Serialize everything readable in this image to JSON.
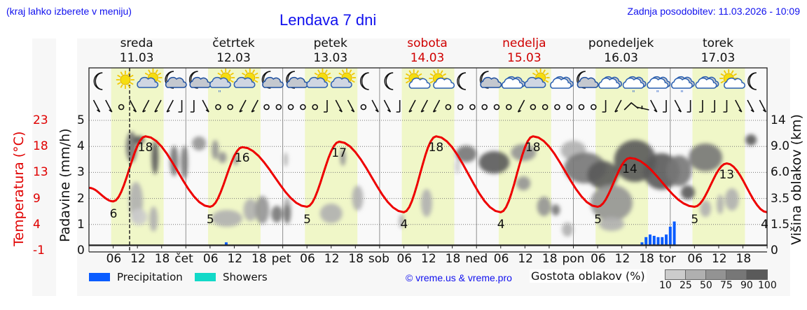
{
  "header": {
    "location_hint": "(kraj lahko izberete v meniju)",
    "title": "Lendava 7 dni",
    "last_update": "Zadnja posodobitev: 11.03.2026 - 10:09"
  },
  "days": [
    {
      "name": "sreda",
      "date": "11.03",
      "weekend": false
    },
    {
      "name": "četrtek",
      "date": "12.03",
      "weekend": false
    },
    {
      "name": "petek",
      "date": "13.03",
      "weekend": false
    },
    {
      "name": "sobota",
      "date": "14.03",
      "weekend": true
    },
    {
      "name": "nedelja",
      "date": "15.03",
      "weekend": true
    },
    {
      "name": "ponedeljek",
      "date": "16.03",
      "weekend": false
    },
    {
      "name": "torek",
      "date": "17.03",
      "weekend": false
    }
  ],
  "weather_icons": [
    "moon",
    "sun",
    "sun-cloud",
    "moon-cloud",
    "moon-cloud",
    "sun-cloud-drizzle",
    "sun-cloud",
    "moon-cloud",
    "moon-cloud",
    "sun-cloud",
    "sun-cloud",
    "moon",
    "moon",
    "sun-small-cloud",
    "sun-small-cloud",
    "moon",
    "moon-cloud",
    "cloud",
    "sun-cloud",
    "cloud",
    "moon-cloud",
    "cloud",
    "cloud-drizzle",
    "cloud-drizzle",
    "cloud-drizzle",
    "cloud",
    "sun-small-cloud",
    "moon"
  ],
  "axes": {
    "left_temp_label": "Temperatura (°C)",
    "left_temp_ticks": [
      "23",
      "18",
      "13",
      "9",
      "4",
      "-1"
    ],
    "left_precip_label": "Padavine (mm/h)",
    "left_precip_ticks": [
      "5",
      "4",
      "3",
      "2",
      "1",
      "0"
    ],
    "right_label": "Višina oblakov (km)",
    "right_ticks": [
      "14",
      "9.0",
      "6.0",
      "3.5",
      "1.5",
      "0"
    ],
    "x_ticks": [
      "06",
      "12",
      "18",
      "čet",
      "06",
      "12",
      "18",
      "pet",
      "06",
      "12",
      "18",
      "sob",
      "06",
      "12",
      "18",
      "ned",
      "06",
      "12",
      "18",
      "pon",
      "06",
      "12",
      "18",
      "tor",
      "06",
      "12",
      "18"
    ]
  },
  "legend": {
    "precipitation": "Precipitation",
    "showers": "Showers",
    "precipitation_color": "#0a5cff",
    "showers_color": "#12d9c8",
    "credit": "© vreme.us & vreme.pro",
    "cloud_density_label": "Gostota oblakov (%)",
    "cloud_density_ticks": [
      "10",
      "25",
      "50",
      "75",
      "90",
      "100"
    ],
    "cloud_density_colors": [
      "#cccccc",
      "#b0b0b0",
      "#939393",
      "#777777",
      "#5a5a5a"
    ]
  },
  "colors": {
    "temperature_line": "#ee0000",
    "daylight_band": "#f0f7c8",
    "weekend_text": "#d00000",
    "link_blue": "#1010ee"
  },
  "temperature_labels": [
    {
      "value": "6",
      "type": "min"
    },
    {
      "value": "18",
      "type": "max"
    },
    {
      "value": "5",
      "type": "min"
    },
    {
      "value": "16",
      "type": "max"
    },
    {
      "value": "5",
      "type": "min"
    },
    {
      "value": "17",
      "type": "max"
    },
    {
      "value": "4",
      "type": "min"
    },
    {
      "value": "18",
      "type": "max"
    },
    {
      "value": "4",
      "type": "min"
    },
    {
      "value": "18",
      "type": "max"
    },
    {
      "value": "5",
      "type": "min"
    },
    {
      "value": "14",
      "type": "max"
    },
    {
      "value": "5",
      "type": "min"
    },
    {
      "value": "13",
      "type": "max"
    },
    {
      "value": "4",
      "type": "end"
    }
  ],
  "chart_data": {
    "type": "line",
    "title": "Lendava 7 dni",
    "xlabel": "",
    "ylabel": "Temperatura (°C) / Padavine (mm/h)",
    "y2label": "Višina oblakov (km)",
    "ylim_temp": [
      -1,
      23
    ],
    "ylim_precip": [
      0,
      5
    ],
    "y2_ticks": [
      0,
      1.5,
      3.5,
      6.0,
      9.0,
      14
    ],
    "x_categories": [
      "11.03",
      "12.03",
      "13.03",
      "14.03",
      "15.03",
      "16.03",
      "17.03"
    ],
    "series": [
      {
        "name": "Temperatura",
        "unit": "°C",
        "daily_min": [
          6,
          5,
          5,
          4,
          4,
          5,
          5
        ],
        "daily_max": [
          18,
          16,
          17,
          18,
          18,
          14,
          13
        ],
        "end_value": 4
      },
      {
        "name": "Precipitation",
        "unit": "mm/h",
        "points": [
          {
            "time": "12.03 10h",
            "value": 0.1
          },
          {
            "time": "16.03 17h",
            "value": 0.1
          },
          {
            "time": "16.03 18h",
            "value": 0.3
          },
          {
            "time": "16.03 19h",
            "value": 0.4
          },
          {
            "time": "16.03 20h",
            "value": 0.35
          },
          {
            "time": "16.03 21h",
            "value": 0.3
          },
          {
            "time": "16.03 22h",
            "value": 0.3
          },
          {
            "time": "16.03 23h",
            "value": 0.4
          },
          {
            "time": "17.03 00h",
            "value": 0.7
          },
          {
            "time": "17.03 01h",
            "value": 0.9
          }
        ]
      },
      {
        "name": "Showers",
        "unit": "mm/h",
        "points": []
      }
    ],
    "grid": true,
    "legend_position": "bottom",
    "current_time_marker": "11.03 10:09"
  }
}
